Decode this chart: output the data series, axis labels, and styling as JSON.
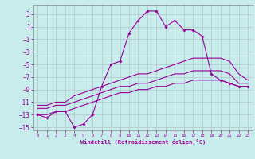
{
  "xlabel": "Windchill (Refroidissement éolien,°C)",
  "background_color": "#c8ecec",
  "grid_color": "#b0c8c8",
  "line_color": "#990099",
  "xlim": [
    -0.5,
    23.5
  ],
  "ylim": [
    -15.5,
    4.5
  ],
  "xticks": [
    0,
    1,
    2,
    3,
    4,
    5,
    6,
    7,
    8,
    9,
    10,
    11,
    12,
    13,
    14,
    15,
    16,
    17,
    18,
    19,
    20,
    21,
    22,
    23
  ],
  "yticks": [
    -15,
    -13,
    -11,
    -9,
    -7,
    -5,
    -3,
    -1,
    1,
    3
  ],
  "series1_x": [
    0,
    1,
    2,
    3,
    4,
    5,
    6,
    7,
    8,
    9,
    10,
    11,
    12,
    13,
    14,
    15,
    16,
    17,
    18,
    19,
    20,
    21,
    22,
    23
  ],
  "series1_y": [
    -13,
    -13.5,
    -12.5,
    -12.5,
    -15,
    -14.5,
    -13,
    -8.5,
    -5,
    -4.5,
    0,
    2,
    3.5,
    3.5,
    1,
    2,
    0.5,
    0.5,
    -0.5,
    -6.5,
    -7.5,
    -8,
    -8.5,
    -8.5
  ],
  "series2_x": [
    0,
    1,
    2,
    3,
    4,
    5,
    6,
    7,
    8,
    9,
    10,
    11,
    12,
    13,
    14,
    15,
    16,
    17,
    18,
    19,
    20,
    21,
    22,
    23
  ],
  "series2_y": [
    -13,
    -13,
    -12.5,
    -12.5,
    -12,
    -11.5,
    -11,
    -10.5,
    -10,
    -9.5,
    -9.5,
    -9,
    -9,
    -8.5,
    -8.5,
    -8,
    -8,
    -7.5,
    -7.5,
    -7.5,
    -7.5,
    -8,
    -8.5,
    -8.5
  ],
  "series3_x": [
    0,
    1,
    2,
    3,
    4,
    5,
    6,
    7,
    8,
    9,
    10,
    11,
    12,
    13,
    14,
    15,
    16,
    17,
    18,
    19,
    20,
    21,
    22,
    23
  ],
  "series3_y": [
    -12,
    -12,
    -11.5,
    -11.5,
    -11,
    -10.5,
    -10,
    -9.5,
    -9,
    -8.5,
    -8.5,
    -8,
    -8,
    -7.5,
    -7,
    -6.5,
    -6.5,
    -6,
    -6,
    -6,
    -6,
    -6.5,
    -8,
    -8
  ],
  "series4_x": [
    0,
    1,
    2,
    3,
    4,
    5,
    6,
    7,
    8,
    9,
    10,
    11,
    12,
    13,
    14,
    15,
    16,
    17,
    18,
    19,
    20,
    21,
    22,
    23
  ],
  "series4_y": [
    -11.5,
    -11.5,
    -11,
    -11,
    -10,
    -9.5,
    -9,
    -8.5,
    -8,
    -7.5,
    -7,
    -6.5,
    -6.5,
    -6,
    -5.5,
    -5,
    -4.5,
    -4,
    -4,
    -4,
    -4,
    -4.5,
    -6.5,
    -7.5
  ]
}
